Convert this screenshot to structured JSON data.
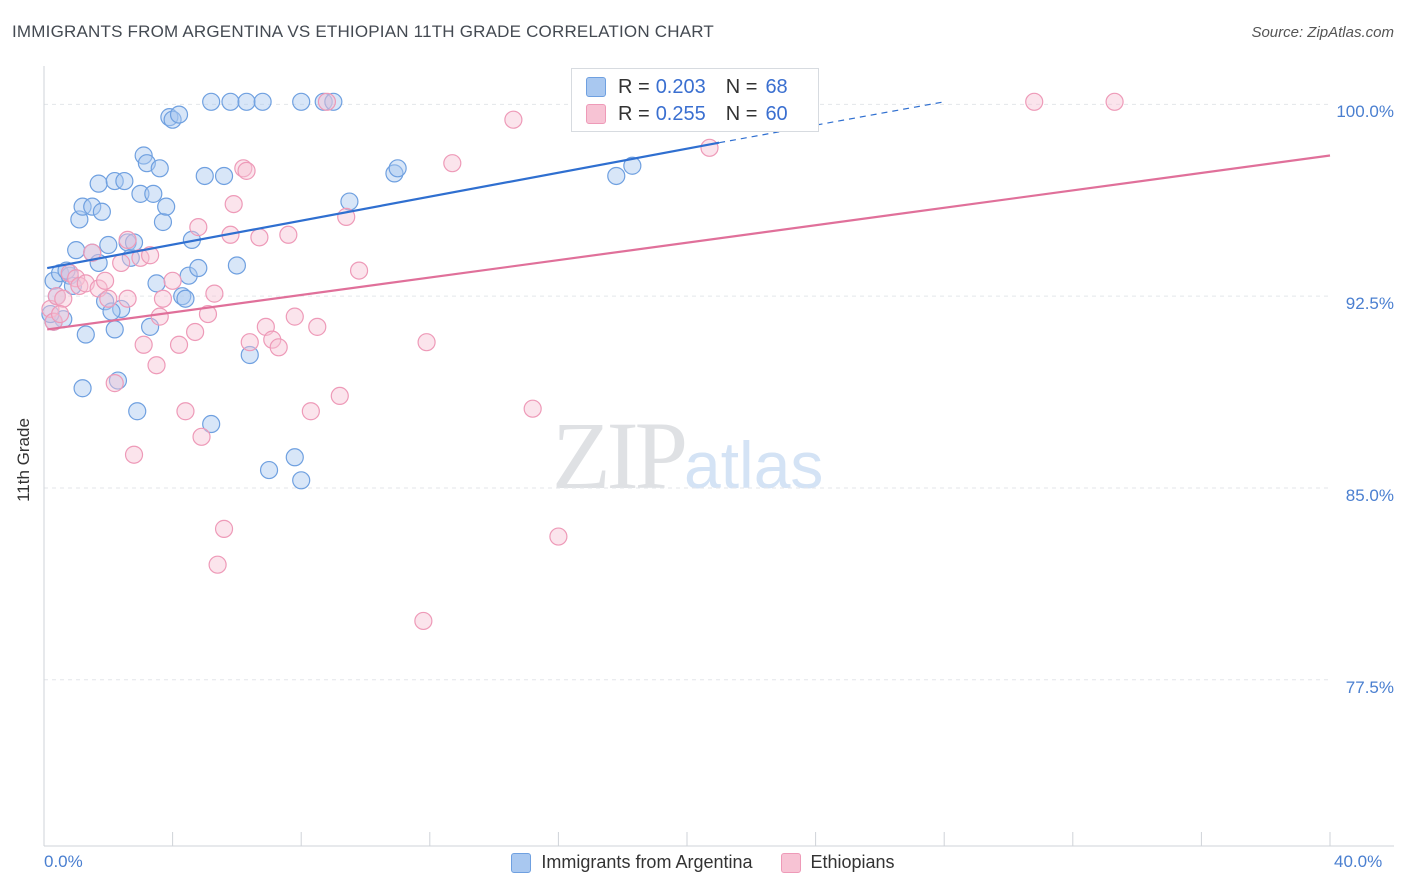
{
  "chart_data": {
    "type": "scatter",
    "title": "IMMIGRANTS FROM ARGENTINA VS ETHIOPIAN 11TH GRADE CORRELATION CHART",
    "source": "Source: ZipAtlas.com",
    "xlabel": "",
    "ylabel": "11th Grade",
    "xlim": [
      0,
      40
    ],
    "ylim": [
      71.0,
      101.5
    ],
    "y_ticks": [
      {
        "value": 100.0,
        "label": "100.0%"
      },
      {
        "value": 92.5,
        "label": "92.5%"
      },
      {
        "value": 85.0,
        "label": "85.0%"
      },
      {
        "value": 77.5,
        "label": "77.5%"
      }
    ],
    "x_tick_labels": {
      "min": "0.0%",
      "max": "40.0%"
    },
    "x_minor_ticks": [
      0,
      4,
      8,
      12,
      16,
      20,
      24,
      28,
      32,
      36,
      40
    ],
    "grid": true,
    "legend_position": "bottom",
    "stats_box": {
      "rows": [
        {
          "r_label": "R =",
          "r_value": "0.203",
          "n_label": "N =",
          "n_value": "68"
        },
        {
          "r_label": "R =",
          "r_value": "0.255",
          "n_label": "N =",
          "n_value": "60"
        }
      ]
    },
    "watermark": {
      "zip": "ZIP",
      "atlas": "atlas"
    },
    "series": [
      {
        "name": "Immigrants from Argentina",
        "color": "#6fa0e0",
        "fill": "#a9c8f0",
        "line_color": "#2f6fd0",
        "trend": {
          "x0": 0.1,
          "y0": 93.6,
          "x1": 21.0,
          "y1": 98.5,
          "dash_to_x": 28.0,
          "dash_to_y": 100.1
        },
        "points": [
          [
            0.3,
            93.1
          ],
          [
            0.4,
            92.5
          ],
          [
            0.6,
            91.6
          ],
          [
            0.3,
            91.5
          ],
          [
            0.5,
            93.4
          ],
          [
            0.8,
            93.3
          ],
          [
            0.9,
            92.9
          ],
          [
            1.0,
            94.3
          ],
          [
            1.1,
            95.5
          ],
          [
            1.2,
            96.0
          ],
          [
            1.5,
            96.0
          ],
          [
            1.7,
            96.9
          ],
          [
            1.8,
            95.8
          ],
          [
            1.5,
            94.2
          ],
          [
            1.7,
            93.8
          ],
          [
            1.9,
            92.3
          ],
          [
            1.3,
            91.0
          ],
          [
            1.2,
            88.9
          ],
          [
            2.0,
            94.5
          ],
          [
            2.2,
            91.2
          ],
          [
            2.4,
            92.0
          ],
          [
            2.3,
            89.2
          ],
          [
            2.2,
            97.0
          ],
          [
            2.5,
            97.0
          ],
          [
            2.6,
            94.6
          ],
          [
            2.7,
            94.0
          ],
          [
            2.8,
            94.6
          ],
          [
            2.9,
            88.0
          ],
          [
            3.0,
            96.5
          ],
          [
            3.1,
            98.0
          ],
          [
            3.2,
            97.7
          ],
          [
            3.3,
            91.3
          ],
          [
            3.5,
            93.0
          ],
          [
            3.4,
            96.5
          ],
          [
            3.6,
            97.5
          ],
          [
            3.7,
            95.4
          ],
          [
            3.8,
            96.0
          ],
          [
            3.9,
            99.5
          ],
          [
            4.0,
            99.4
          ],
          [
            4.2,
            99.6
          ],
          [
            4.3,
            92.5
          ],
          [
            4.5,
            93.3
          ],
          [
            4.6,
            94.7
          ],
          [
            4.8,
            93.6
          ],
          [
            5.0,
            97.2
          ],
          [
            5.2,
            87.5
          ],
          [
            5.2,
            100.1
          ],
          [
            5.6,
            97.2
          ],
          [
            5.8,
            100.1
          ],
          [
            6.0,
            93.7
          ],
          [
            6.3,
            100.1
          ],
          [
            6.4,
            90.2
          ],
          [
            6.8,
            100.1
          ],
          [
            7.0,
            85.7
          ],
          [
            8.0,
            100.1
          ],
          [
            8.7,
            100.1
          ],
          [
            7.8,
            86.2
          ],
          [
            8.0,
            85.3
          ],
          [
            9.0,
            100.1
          ],
          [
            9.5,
            96.2
          ],
          [
            10.9,
            97.3
          ],
          [
            11.0,
            97.5
          ],
          [
            17.8,
            97.2
          ],
          [
            18.3,
            97.6
          ],
          [
            0.2,
            91.8
          ],
          [
            0.7,
            93.5
          ],
          [
            2.1,
            91.9
          ],
          [
            4.4,
            92.4
          ]
        ]
      },
      {
        "name": "Ethiopians",
        "color": "#ee9ab8",
        "fill": "#f7c3d4",
        "line_color": "#e0709a",
        "trend": {
          "x0": 0.1,
          "y0": 91.2,
          "x1": 40.0,
          "y1": 98.0
        },
        "points": [
          [
            0.2,
            92.0
          ],
          [
            0.3,
            91.5
          ],
          [
            0.4,
            92.5
          ],
          [
            0.6,
            92.4
          ],
          [
            0.8,
            93.4
          ],
          [
            1.0,
            93.2
          ],
          [
            1.1,
            92.9
          ],
          [
            1.3,
            93.0
          ],
          [
            1.5,
            94.2
          ],
          [
            1.7,
            92.8
          ],
          [
            1.9,
            93.1
          ],
          [
            2.0,
            92.4
          ],
          [
            2.2,
            89.1
          ],
          [
            2.4,
            93.8
          ],
          [
            2.6,
            94.7
          ],
          [
            2.6,
            92.4
          ],
          [
            2.8,
            86.3
          ],
          [
            3.0,
            94.0
          ],
          [
            3.1,
            90.6
          ],
          [
            3.3,
            94.1
          ],
          [
            3.5,
            89.8
          ],
          [
            3.6,
            91.7
          ],
          [
            3.7,
            92.4
          ],
          [
            4.0,
            93.1
          ],
          [
            4.2,
            90.6
          ],
          [
            4.4,
            88.0
          ],
          [
            4.7,
            91.1
          ],
          [
            4.8,
            95.2
          ],
          [
            4.9,
            87.0
          ],
          [
            5.1,
            91.8
          ],
          [
            5.3,
            92.6
          ],
          [
            5.4,
            82.0
          ],
          [
            5.6,
            83.4
          ],
          [
            5.8,
            94.9
          ],
          [
            5.9,
            96.1
          ],
          [
            6.2,
            97.5
          ],
          [
            6.3,
            97.4
          ],
          [
            6.4,
            90.7
          ],
          [
            6.7,
            94.8
          ],
          [
            6.9,
            91.3
          ],
          [
            7.1,
            90.8
          ],
          [
            7.3,
            90.5
          ],
          [
            7.6,
            94.9
          ],
          [
            7.8,
            91.7
          ],
          [
            8.3,
            88.0
          ],
          [
            8.5,
            91.3
          ],
          [
            8.8,
            100.1
          ],
          [
            9.2,
            88.6
          ],
          [
            9.4,
            95.6
          ],
          [
            9.8,
            93.5
          ],
          [
            11.9,
            90.7
          ],
          [
            11.8,
            79.8
          ],
          [
            12.7,
            97.7
          ],
          [
            14.6,
            99.4
          ],
          [
            15.2,
            88.1
          ],
          [
            16.0,
            83.1
          ],
          [
            20.7,
            98.3
          ],
          [
            30.8,
            100.1
          ],
          [
            33.3,
            100.1
          ],
          [
            0.5,
            91.8
          ]
        ]
      }
    ]
  }
}
